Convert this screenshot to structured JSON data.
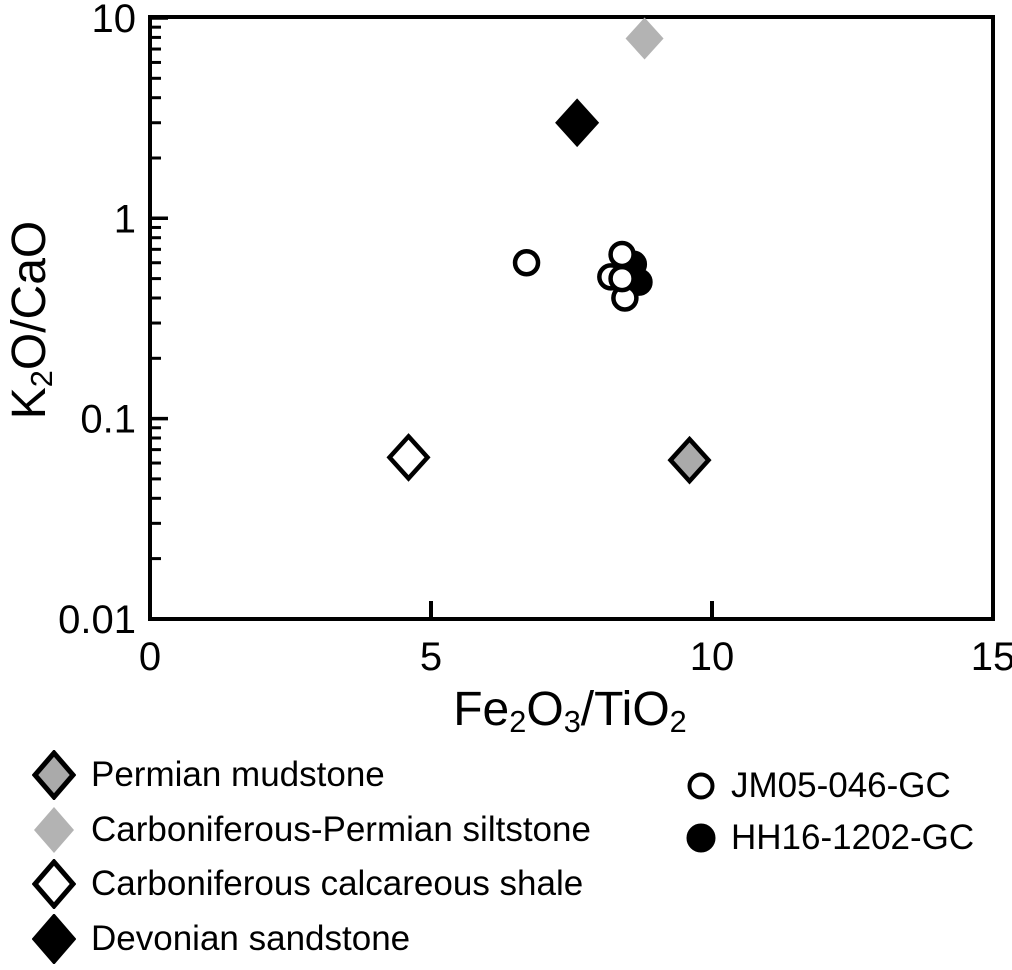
{
  "chart_data": {
    "type": "scatter",
    "title": "",
    "xlabel": "Fe2O3/TiO2",
    "ylabel": "K2O/CaO",
    "x_axis": {
      "scale": "linear",
      "min": 0,
      "max": 15,
      "tick_labels": [
        "0",
        "5",
        "10",
        "15"
      ]
    },
    "y_axis": {
      "scale": "log",
      "min": 0.01,
      "max": 10,
      "tick_labels": [
        "10",
        "1",
        "0.1",
        "0.01"
      ]
    },
    "grid": false,
    "legend_position": "below-plot, two columns",
    "draw_order": [
      0,
      1,
      2,
      3,
      5,
      4
    ],
    "series": [
      {
        "name": "Permian mudstone",
        "marker": "diamond",
        "fill": "#aaaaaa",
        "stroke": "#000000",
        "points": [
          {
            "x": 9.6,
            "y": 0.062
          }
        ]
      },
      {
        "name": "Carboniferous-Permian siltstone",
        "marker": "diamond",
        "fill": "#b3b3b3",
        "stroke": "none",
        "points": [
          {
            "x": 8.8,
            "y": 7.9
          }
        ]
      },
      {
        "name": "Carboniferous calcareous shale",
        "marker": "diamond",
        "fill": "#ffffff",
        "stroke": "#000000",
        "points": [
          {
            "x": 4.6,
            "y": 0.064
          }
        ]
      },
      {
        "name": "Devonian sandstone",
        "marker": "diamond",
        "fill": "#000000",
        "stroke": "#000000",
        "points": [
          {
            "x": 7.6,
            "y": 3.0
          }
        ]
      },
      {
        "name": "JM05-046-GC",
        "marker": "circle",
        "fill": "#ffffff",
        "stroke": "#000000",
        "points": [
          {
            "x": 6.7,
            "y": 0.6
          },
          {
            "x": 8.4,
            "y": 0.66
          },
          {
            "x": 8.2,
            "y": 0.51
          },
          {
            "x": 8.45,
            "y": 0.4
          },
          {
            "x": 8.4,
            "y": 0.5
          }
        ]
      },
      {
        "name": "HH16-1202-GC",
        "marker": "circle",
        "fill": "#000000",
        "stroke": "#000000",
        "points": [
          {
            "x": 8.6,
            "y": 0.59
          },
          {
            "x": 8.7,
            "y": 0.48
          }
        ]
      }
    ]
  }
}
